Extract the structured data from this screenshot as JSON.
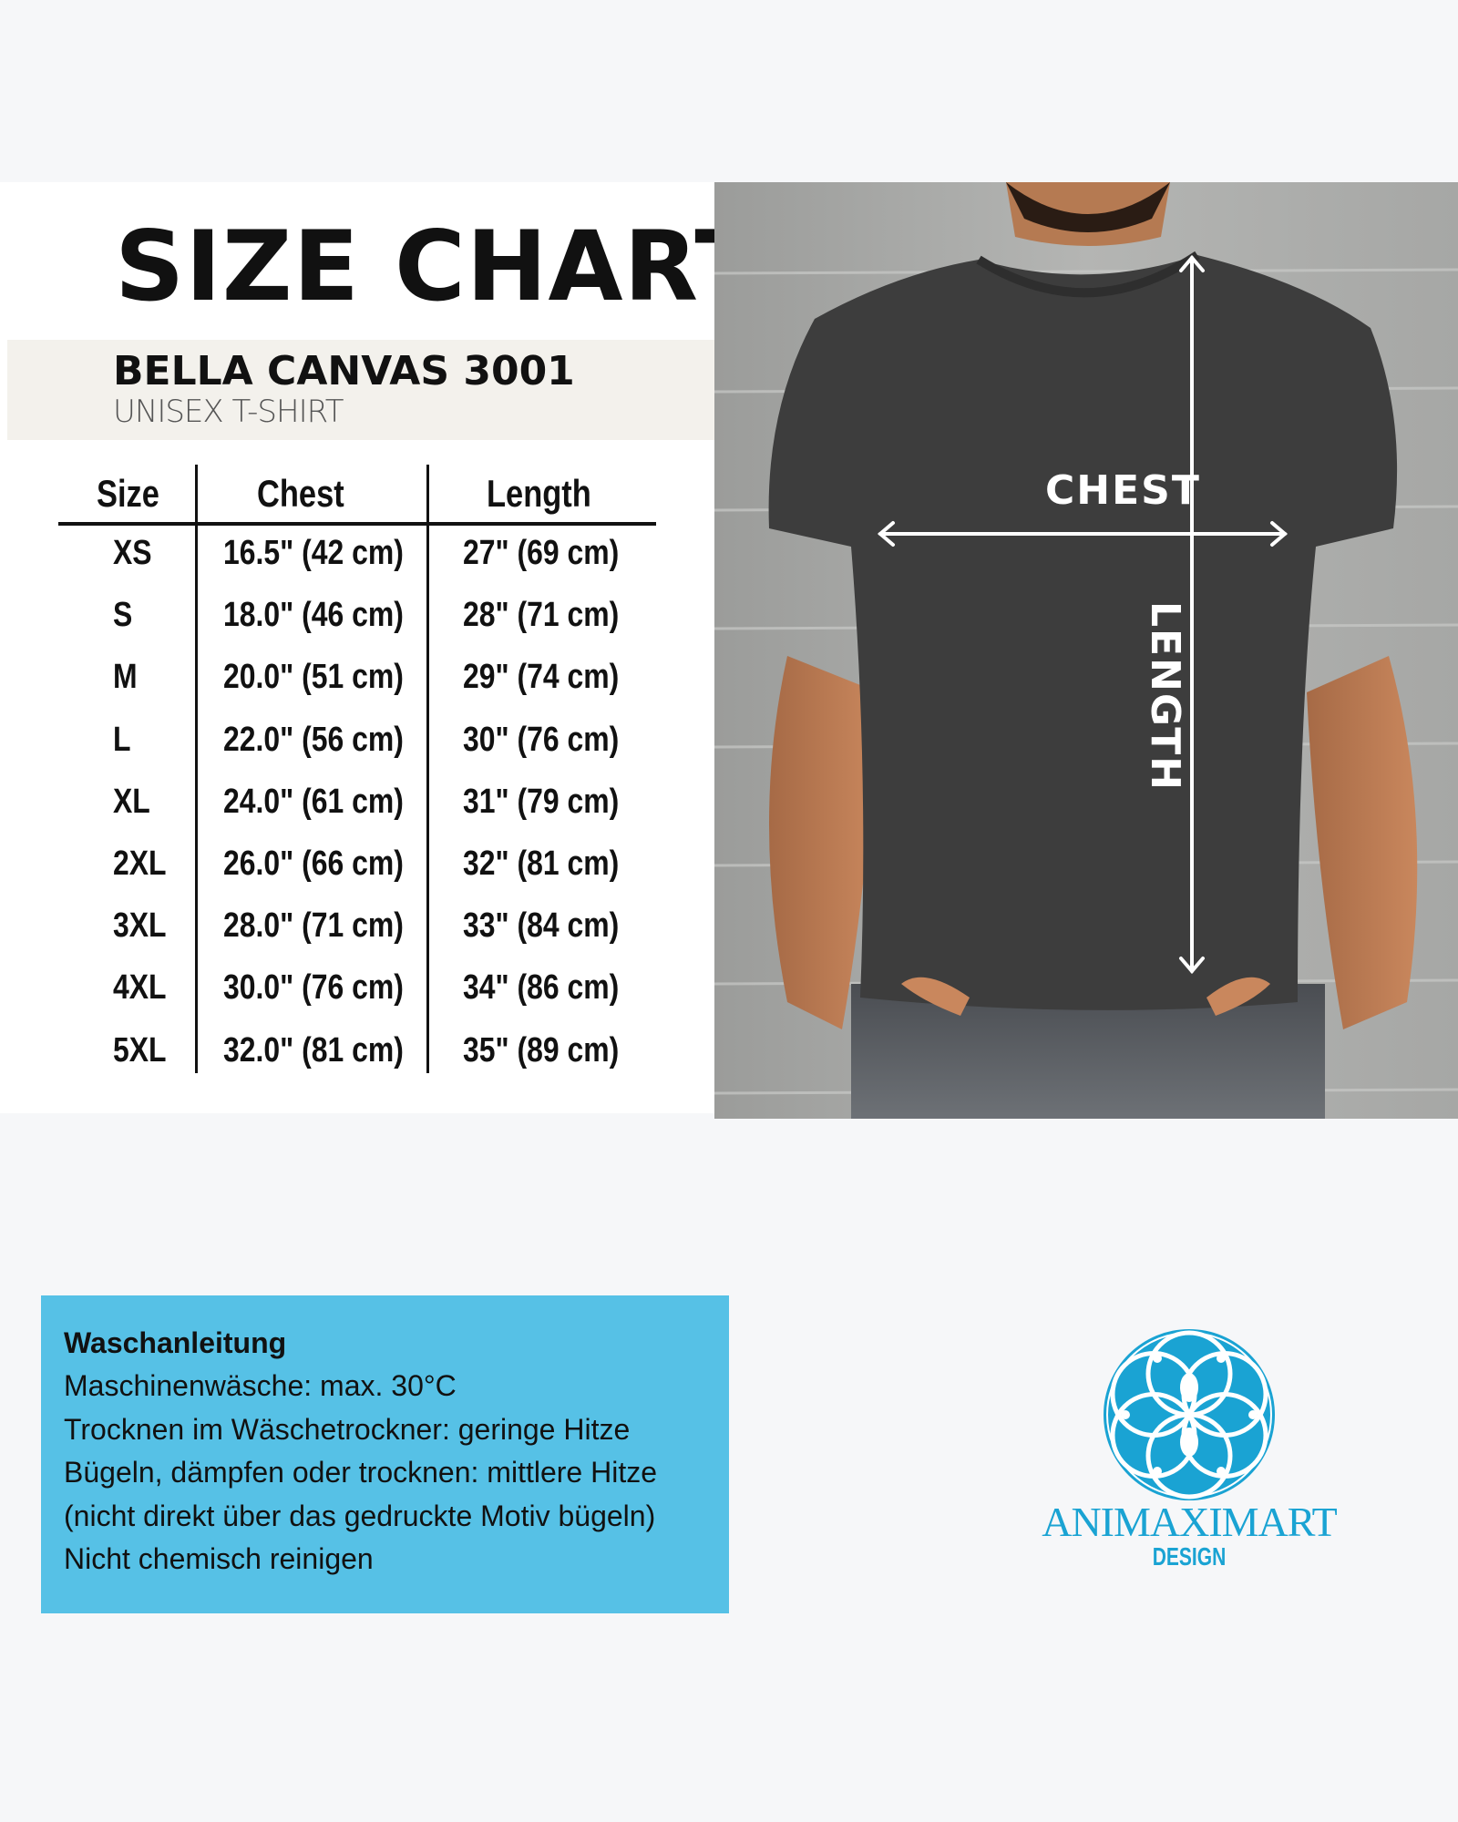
{
  "header": {
    "title": "SIZE CHART",
    "brand": "BELLA CANVAS 3001",
    "subtitle": "UNISEX T-SHIRT"
  },
  "table": {
    "columns": [
      "Size",
      "Chest",
      "Length"
    ],
    "rows": [
      [
        "XS",
        "16.5\" (42 cm)",
        "27\" (69 cm)"
      ],
      [
        "S",
        "18.0\" (46 cm)",
        "28\" (71 cm)"
      ],
      [
        "M",
        "20.0\" (51 cm)",
        "29\" (74 cm)"
      ],
      [
        "L",
        "22.0\" (56 cm)",
        "30\" (76 cm)"
      ],
      [
        "XL",
        "24.0\" (61 cm)",
        "31\" (79 cm)"
      ],
      [
        "2XL",
        "26.0\" (66 cm)",
        "32\" (81 cm)"
      ],
      [
        "3XL",
        "28.0\" (71 cm)",
        "33\" (84 cm)"
      ],
      [
        "4XL",
        "30.0\" (76 cm)",
        "34\" (86 cm)"
      ],
      [
        "5XL",
        "32.0\" (81 cm)",
        "35\" (89 cm)"
      ]
    ]
  },
  "photo": {
    "chest_label": "CHEST",
    "length_label": "LENGTH",
    "shirt_color": "#3d3d3d"
  },
  "care": {
    "title": "Waschanleitung",
    "lines": [
      "Maschinenwäsche: max. 30°C",
      "Trocknen im Wäschetrockner: geringe Hitze",
      "Bügeln, dämpfen oder trocknen: mittlere Hitze",
      "(nicht direkt über das gedruckte Motiv bügeln)",
      "Nicht chemisch reinigen"
    ],
    "background": "#56c1e6"
  },
  "logo": {
    "name": "ANIMAXIMART",
    "sub": "DESIGN",
    "color": "#1aa3d3"
  }
}
